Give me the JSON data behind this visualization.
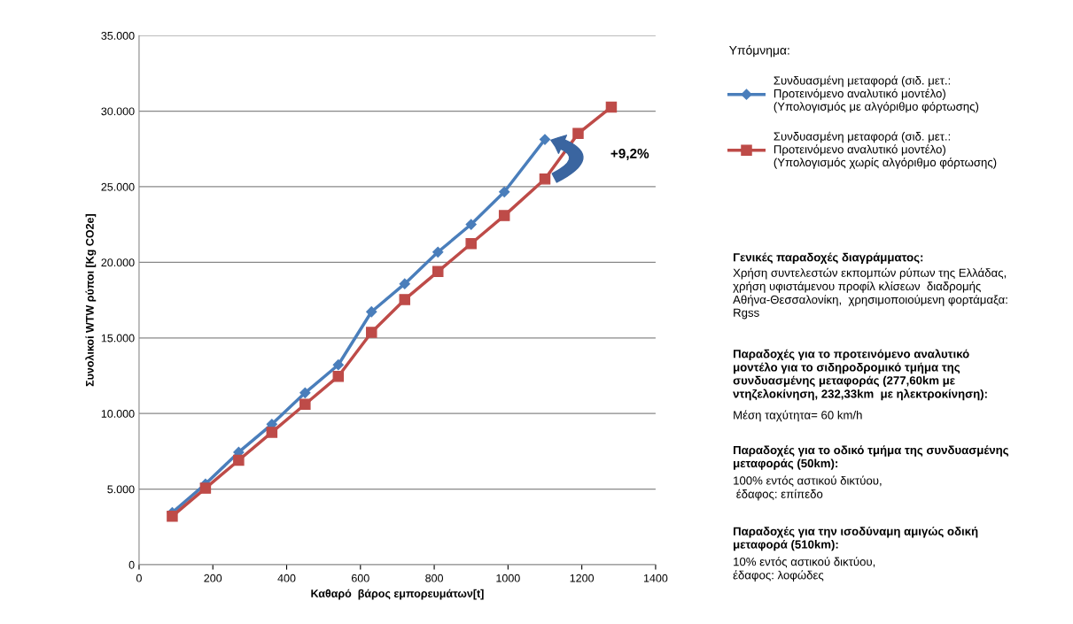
{
  "chart_data": {
    "type": "line",
    "xlabel": "Καθαρό  βάρος εμπορευμάτων[t]",
    "ylabel": "Συνολικοί WTW ρύποι [Kg CO2e]",
    "legend_title": "Υπόμνημα:",
    "legend": "right",
    "grid": "y",
    "line_style": "solid",
    "xlim": [
      0,
      1400
    ],
    "xticks": [
      0,
      200,
      400,
      600,
      800,
      1000,
      1200,
      1400
    ],
    "ylim": [
      0,
      35000
    ],
    "yticks": [
      {
        "value": 0,
        "label": "0"
      },
      {
        "value": 5000,
        "label": "5.000"
      },
      {
        "value": 10000,
        "label": "10.000"
      },
      {
        "value": 15000,
        "label": "15.000"
      },
      {
        "value": 20000,
        "label": "20.000"
      },
      {
        "value": 25000,
        "label": "25.000"
      },
      {
        "value": 30000,
        "label": "30.000"
      },
      {
        "value": 35000,
        "label": "35.000"
      }
    ],
    "series": [
      {
        "name": "Συνδυασμένη μεταφορά (σιδ. μετ.:\nΠροτεινόμενο αναλυτικό μοντέλο)\n(Υπολογισμός με αλγόριθμο φόρτωσης)",
        "color": "#4a7ebb",
        "marker": "diamond",
        "x": [
          90,
          180,
          270,
          360,
          450,
          540,
          630,
          720,
          810,
          900,
          990,
          1100
        ],
        "values": [
          3450,
          5340,
          7440,
          9290,
          11370,
          13220,
          16730,
          18580,
          20680,
          22510,
          24660,
          28130
        ]
      },
      {
        "name": "Συνδυασμένη μεταφορά (σιδ. μετ.:\nΠροτεινόμενο αναλυτικό μοντέλο)\n(Υπολογισμός χωρίς αλγόριθμο φόρτωσης)",
        "color": "#be4b48",
        "marker": "square",
        "x": [
          90,
          180,
          270,
          360,
          450,
          540,
          630,
          720,
          810,
          900,
          990,
          1100,
          1190,
          1280
        ],
        "values": [
          3210,
          5060,
          6910,
          8760,
          10610,
          12460,
          15370,
          17540,
          19390,
          21240,
          23090,
          25510,
          28520,
          30270
        ]
      }
    ],
    "annotations": [
      "+9,2%",
      "Γενικές παραδοχές διαγράμματος:",
      "Χρήση συντελεστών εκπομπών ρύπων της Ελλάδας,\nχρήση υφιστάμενου προφίλ κλίσεων  διαδρομής\nΑθήνα-Θεσσαλονίκη,  χρησιμοποιούμενη φορτάμαξα:\nRgss",
      "Παραδοχές για το προτεινόμενο αναλυτικό\nμοντέλο για το σιδηροδρομικό τμήμα της\nσυνδυασμένης μεταφοράς (277,60km με\nντηζελοκίνηση, 232,33km  με ηλεκτροκίνηση):",
      "Μέση ταχύτητα= 60 km/h",
      "Παραδοχές για το οδικό τμήμα της συνδυασμένης\nμεταφοράς (50km):",
      "100% εντός αστικού δικτύου,\n έδαφος: επίπεδο",
      "Παραδοχές για την ισοδύναμη αμιγώς οδική\nμεταφορά (510km):",
      "10% εντός αστικού δικτύου,\nέδαφος: λοφώδες"
    ]
  }
}
